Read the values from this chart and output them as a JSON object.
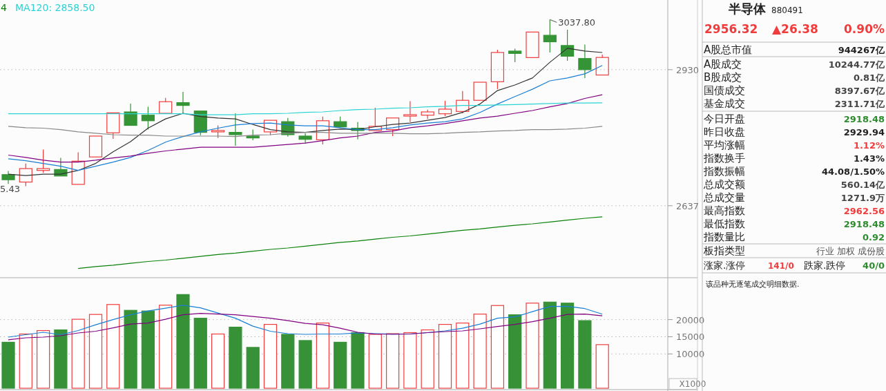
{
  "chart_data": [
    {
      "type": "candlestick",
      "categories": [
        null,
        null,
        null,
        null,
        null,
        null,
        null,
        null,
        null,
        null,
        null,
        null,
        null,
        null,
        null,
        null,
        null,
        null,
        null,
        null,
        null,
        null,
        null,
        null,
        null,
        null,
        null,
        null,
        null,
        null,
        null,
        null,
        null,
        null,
        null
      ],
      "ohlc": [
        [
          2704,
          2712,
          2684,
          2693
        ],
        [
          2688,
          2728,
          2679,
          2717
        ],
        [
          2713,
          2758,
          2708,
          2717
        ],
        [
          2715,
          2740,
          2701,
          2701
        ],
        [
          2683,
          2752,
          2683,
          2733
        ],
        [
          2742,
          2787,
          2742,
          2787
        ],
        [
          2794,
          2837,
          2781,
          2837
        ],
        [
          2839,
          2857,
          2810,
          2810
        ],
        [
          2832,
          2850,
          2801,
          2820
        ],
        [
          2836,
          2869,
          2836,
          2861
        ],
        [
          2859,
          2882,
          2835,
          2853
        ],
        [
          2841,
          2841,
          2789,
          2795
        ],
        [
          2796,
          2810,
          2783,
          2799
        ],
        [
          2795,
          2836,
          2766,
          2790
        ],
        [
          2787,
          2801,
          2778,
          2783
        ],
        [
          2796,
          2821,
          2789,
          2821
        ],
        [
          2818,
          2826,
          2786,
          2790
        ],
        [
          2787,
          2793,
          2771,
          2780
        ],
        [
          2779,
          2829,
          2769,
          2820
        ],
        [
          2818,
          2829,
          2805,
          2807
        ],
        [
          2804,
          2817,
          2780,
          2799
        ],
        [
          2799,
          2848,
          2799,
          2808
        ],
        [
          2801,
          2826,
          2787,
          2826
        ],
        [
          2830,
          2862,
          2817,
          2833
        ],
        [
          2832,
          2844,
          2824,
          2839
        ],
        [
          2835,
          2863,
          2830,
          2845
        ],
        [
          2840,
          2884,
          2836,
          2864
        ],
        [
          2864,
          2903,
          2864,
          2903
        ],
        [
          2904,
          2973,
          2888,
          2967
        ],
        [
          2970,
          2975,
          2946,
          2965
        ],
        [
          2956,
          3011,
          2956,
          3011
        ],
        [
          3004,
          3037.8,
          2967,
          2990
        ],
        [
          2982,
          3016,
          2949,
          2959
        ],
        [
          2954,
          2984,
          2912,
          2929.94
        ],
        [
          2918.48,
          2962.56,
          2918.48,
          2956.32
        ]
      ],
      "series": [
        {
          "type": "line",
          "color": "#333333",
          "values": [
            2705,
            2702,
            2705,
            2705,
            2713,
            2728,
            2753,
            2775,
            2804,
            2824,
            2836,
            2829,
            2826,
            2824,
            2812,
            2801,
            2796,
            2795,
            2799,
            2802,
            2801,
            2807,
            2812,
            2815,
            2821,
            2827,
            2838,
            2856,
            2885,
            2897,
            2912,
            2946,
            2976,
            2970,
            2967
          ]
        },
        {
          "type": "line",
          "color": "#1a7fd4",
          "values": [
            2738,
            2734,
            2728,
            2722,
            2713,
            2722,
            2731,
            2741,
            2756,
            2774,
            2786,
            2796,
            2804,
            2811,
            2814,
            2815,
            2811,
            2809,
            2809,
            2805,
            2801,
            2801,
            2805,
            2811,
            2815,
            2818,
            2824,
            2838,
            2856,
            2872,
            2888,
            2906,
            2912,
            2921,
            2939
          ]
        },
        {
          "type": "line",
          "color": "#800080",
          "values": [
            2746,
            2741,
            2735,
            2731,
            2731,
            2735,
            2740,
            2744,
            2750,
            2755,
            2759,
            2763,
            2763,
            2763,
            2763,
            2766,
            2769,
            2772,
            2777,
            2783,
            2787,
            2795,
            2798,
            2805,
            2809,
            2814,
            2820,
            2826,
            2830,
            2836,
            2842,
            2850,
            2857,
            2868,
            2876
          ]
        },
        {
          "type": "line",
          "color": "#2ad4d4",
          "name": "MA120: 2858.50",
          "values": [
            2835,
            2835,
            2835,
            2835,
            2835,
            2835,
            2835,
            2835,
            2835,
            2835,
            2835,
            2833,
            2833,
            2833,
            2835,
            2835,
            2836,
            2838,
            2839,
            2842,
            2844,
            2845,
            2847,
            2848,
            2850,
            2851,
            2853,
            2853,
            2854,
            2855,
            2856,
            2857,
            2858,
            2858,
            2858.5
          ]
        },
        {
          "type": "line",
          "color": "#888888",
          "values": [
            2808,
            2805,
            2804,
            2801,
            2796,
            2793,
            2790,
            2789,
            2789,
            2787,
            2787,
            2787,
            2787,
            2786,
            2789,
            2790,
            2793,
            2795,
            2795,
            2793,
            2793,
            2793,
            2793,
            2792,
            2792,
            2793,
            2795,
            2796,
            2798,
            2799,
            2801,
            2801,
            2802,
            2804,
            2808
          ]
        },
        {
          "type": "line",
          "color": "#0a800a",
          "values": [
            null,
            null,
            null,
            null,
            2502,
            2506,
            2509,
            2513,
            2517,
            2520,
            2524,
            2528,
            2532,
            2535,
            2539,
            2543,
            2546,
            2550,
            2554,
            2558,
            2561,
            2565,
            2569,
            2572,
            2576,
            2580,
            2584,
            2587,
            2591,
            2595,
            2598,
            2602,
            2606,
            2610,
            2613
          ]
        }
      ],
      "ylim": [
        2485,
        3080
      ],
      "yticks": [
        2637,
        2930
      ],
      "grid": "y",
      "legend": "top left",
      "annotations": [
        "4",
        "3037.80",
        "5.43"
      ]
    },
    {
      "type": "bar",
      "categories": [
        null,
        null,
        null,
        null,
        null,
        null,
        null,
        null,
        null,
        null,
        null,
        null,
        null,
        null,
        null,
        null,
        null,
        null,
        null,
        null,
        null,
        null,
        null,
        null,
        null,
        null,
        null,
        null,
        null,
        null,
        null,
        null,
        null,
        null,
        null
      ],
      "series": [
        {
          "type": "bar",
          "values": [
            13400,
            15800,
            16800,
            17000,
            20100,
            21500,
            24400,
            22700,
            22500,
            24200,
            27300,
            20400,
            15800,
            17800,
            11900,
            18600,
            15700,
            13900,
            19000,
            13400,
            16200,
            15700,
            15900,
            16200,
            17000,
            18600,
            19000,
            21600,
            24100,
            21400,
            24800,
            25100,
            24800,
            19700,
            12700
          ],
          "colors": [
            "#379237",
            "#f03c3c",
            "#f03c3c",
            "#379237",
            "#f03c3c",
            "#f03c3c",
            "#f03c3c",
            "#379237",
            "#379237",
            "#f03c3c",
            "#379237",
            "#379237",
            "#f03c3c",
            "#379237",
            "#379237",
            "#f03c3c",
            "#379237",
            "#379237",
            "#f03c3c",
            "#379237",
            "#379237",
            "#f03c3c",
            "#f03c3c",
            "#f03c3c",
            "#f03c3c",
            "#f03c3c",
            "#f03c3c",
            "#f03c3c",
            "#f03c3c",
            "#379237",
            "#f03c3c",
            "#379237",
            "#379237",
            "#379237",
            "#f03c3c"
          ]
        },
        {
          "type": "line",
          "color": "#1a7fd4",
          "values": [
            14900,
            15600,
            16300,
            15600,
            16800,
            18500,
            20000,
            21400,
            22500,
            23300,
            24200,
            23400,
            21900,
            20400,
            18100,
            16600,
            15900,
            15700,
            15800,
            15800,
            16100,
            15900,
            15800,
            15800,
            16200,
            16700,
            17500,
            18700,
            20400,
            20800,
            22300,
            23800,
            23900,
            23200,
            21600
          ]
        },
        {
          "type": "line",
          "color": "#800080",
          "values": [
            14100,
            14700,
            14900,
            15300,
            16100,
            16600,
            17600,
            18700,
            19000,
            20100,
            21400,
            21800,
            21600,
            21400,
            20900,
            20400,
            19700,
            18900,
            18500,
            17500,
            16300,
            15800,
            15700,
            15800,
            16200,
            16500,
            16700,
            17300,
            18000,
            18600,
            19400,
            20400,
            21500,
            21600,
            21100
          ]
        }
      ],
      "ylim": [
        0,
        31800
      ],
      "yticks": [
        10000,
        15000,
        20000
      ],
      "grid": "y",
      "annotations": [
        "X1000"
      ]
    },
    {
      "type": "other",
      "title": "半导体",
      "subtitle": "880491",
      "annotations": [
        "2956.32",
        "▲26.38",
        "0.90%",
        "A股总市值",
        "944267亿",
        "A股成交",
        "10244.77亿",
        "B股成交",
        "0.81亿",
        "国债成交",
        "8397.67亿",
        "基金成交",
        "2311.71亿",
        "今日开盘",
        "2918.48",
        "昨日收盘",
        "2929.94",
        "平均涨幅",
        "1.12%",
        "指数换手",
        "1.43%",
        "指数振幅",
        "44.08/1.50%",
        "总成交额",
        "560.14亿",
        "总成交量",
        "1271.9万",
        "最高指数",
        "2962.56",
        "最低指数",
        "2918.48",
        "指数量比",
        "0.92",
        "板指类型",
        "行业 加权 成份股",
        "涨家.涨停",
        "141/0",
        "跌家.跌停",
        "40/0",
        "该品种无逐笔成交明细数据."
      ],
      "colors": [
        "#f03c3c",
        "#f03c3c",
        "#f03c3c",
        "#222222",
        "#222222",
        "#222222",
        "#444444",
        "#222222",
        "#444444",
        "#222222",
        "#444444",
        "#222222",
        "#444444",
        "#222222",
        "#2e8b2e",
        "#222222",
        "#222222",
        "#222222",
        "#f03c3c",
        "#222222",
        "#222222",
        "#222222",
        "#222222",
        "#222222",
        "#444444",
        "#222222",
        "#444444",
        "#222222",
        "#f03c3c",
        "#222222",
        "#2e8b2e",
        "#222222",
        "#2e8b2e",
        "#222222",
        "#555555",
        "#222222",
        "#f03c3c",
        "#222222",
        "#2e8b2e",
        "#222222"
      ]
    }
  ]
}
